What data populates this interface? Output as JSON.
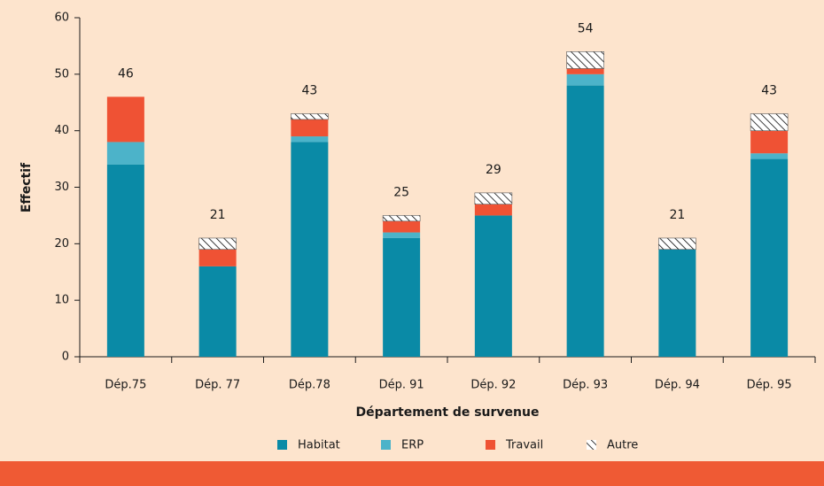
{
  "chart_data": {
    "type": "stacked_bar",
    "y_label": "Effectif",
    "x_label": "Département de survenue",
    "categories": [
      "Dép.75",
      "Dép. 77",
      "Dép.78",
      "Dép. 91",
      "Dép. 92",
      "Dép. 93",
      "Dép. 94",
      "Dép. 95"
    ],
    "series": [
      {
        "name": "Habitat",
        "color": "#0a8aa6",
        "values": [
          34,
          16,
          38,
          21,
          25,
          48,
          19,
          35
        ]
      },
      {
        "name": "ERP",
        "color": "#4cb3c9",
        "values": [
          4,
          0,
          1,
          1,
          0,
          2,
          0,
          1
        ]
      },
      {
        "name": "Travail",
        "color": "#ef5234",
        "values": [
          8,
          3,
          3,
          2,
          2,
          1,
          0,
          4
        ]
      },
      {
        "name": "Autre",
        "color": "#000000",
        "hatch": true,
        "values": [
          0,
          2,
          1,
          1,
          2,
          3,
          2,
          3
        ]
      }
    ],
    "totals": [
      46,
      21,
      43,
      25,
      29,
      54,
      21,
      43
    ],
    "ylim": [
      0,
      60
    ],
    "yticks": [
      0,
      10,
      20,
      30,
      40,
      50,
      60
    ]
  }
}
